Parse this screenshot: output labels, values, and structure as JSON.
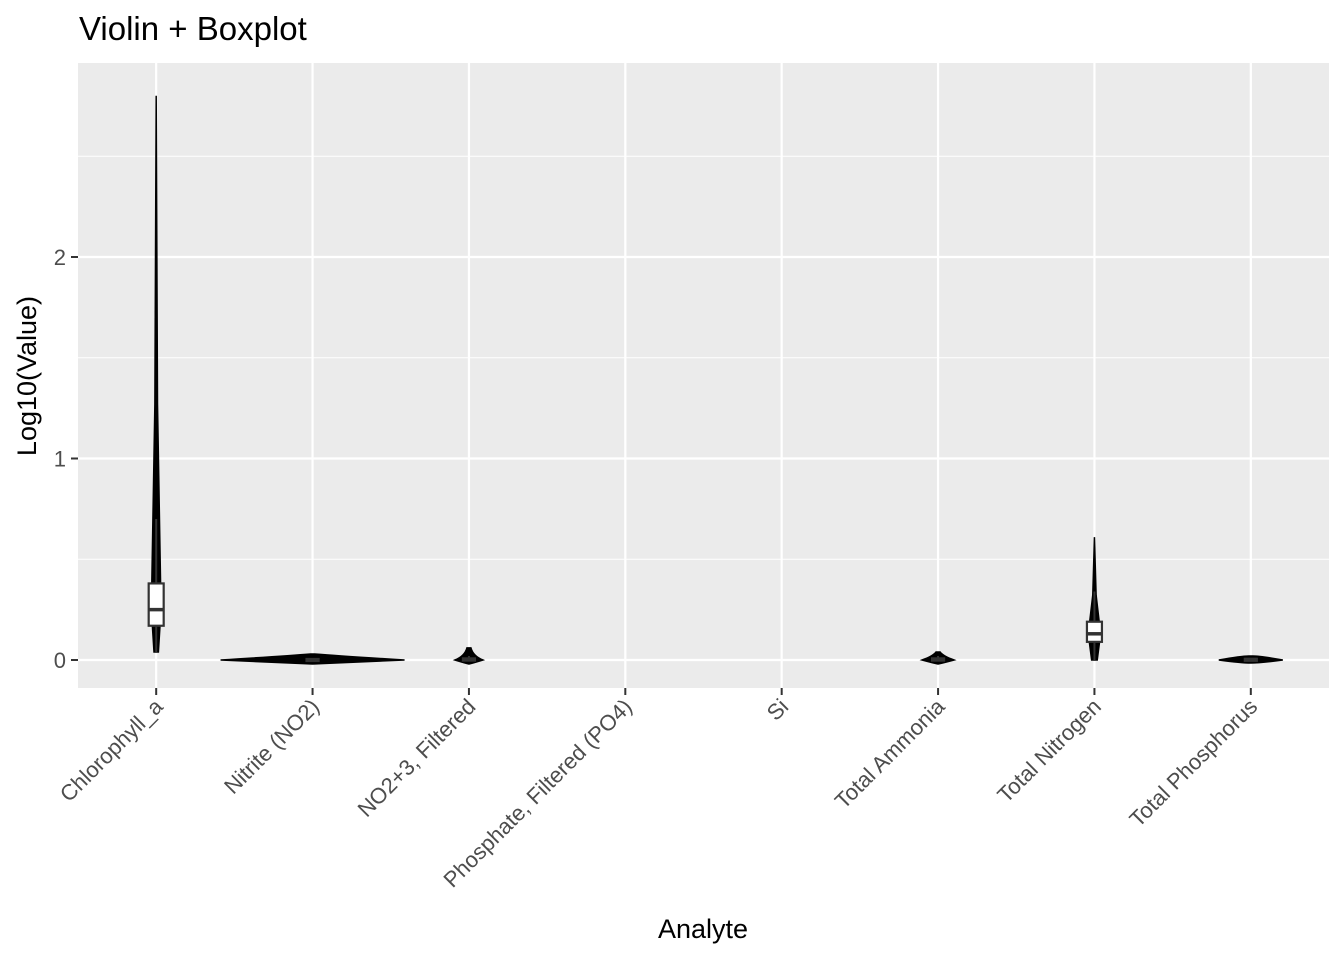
{
  "chart_data": {
    "type": "violin",
    "title": "Violin + Boxplot",
    "xlabel": "Analyte",
    "ylabel": "Log10(Value)",
    "ylim": [
      -0.14,
      2.95
    ],
    "yticks": [
      0,
      1,
      2
    ],
    "grid": true,
    "legend": "none",
    "categories": [
      "Chlorophyll_a",
      "Nitrite (NO2)",
      "NO2+3, Filtered",
      "Phosphate, Filtered (PO4)",
      "Si",
      "Total Ammonia",
      "Total Nitrogen",
      "Total Phosphorus"
    ],
    "series": [
      {
        "category": "Chlorophyll_a",
        "min": 0.04,
        "max": 2.8,
        "q1": 0.17,
        "median": 0.25,
        "q3": 0.38,
        "whisker_low": 0.04,
        "whisker_high": 0.7
      },
      {
        "category": "Nitrite (NO2)",
        "min": -0.01,
        "max": 0.03,
        "q1": -0.005,
        "median": 0.0,
        "q3": 0.005,
        "whisker_low": -0.005,
        "whisker_high": 0.01
      },
      {
        "category": "NO2+3, Filtered",
        "min": -0.01,
        "max": 0.06,
        "q1": -0.003,
        "median": 0.002,
        "q3": 0.008,
        "whisker_low": -0.005,
        "whisker_high": 0.02
      },
      {
        "category": "Phosphate, Filtered (PO4)"
      },
      {
        "category": "Si"
      },
      {
        "category": "Total Ammonia",
        "min": -0.01,
        "max": 0.04,
        "q1": -0.003,
        "median": 0.002,
        "q3": 0.008,
        "whisker_low": -0.005,
        "whisker_high": 0.02
      },
      {
        "category": "Total Nitrogen",
        "min": 0.0,
        "max": 0.61,
        "q1": 0.09,
        "median": 0.13,
        "q3": 0.19,
        "whisker_low": 0.0,
        "whisker_high": 0.34
      },
      {
        "category": "Total Phosphorus",
        "min": -0.005,
        "max": 0.02,
        "q1": -0.002,
        "median": 0.002,
        "q3": 0.006,
        "whisker_low": -0.003,
        "whisker_high": 0.01
      }
    ]
  }
}
